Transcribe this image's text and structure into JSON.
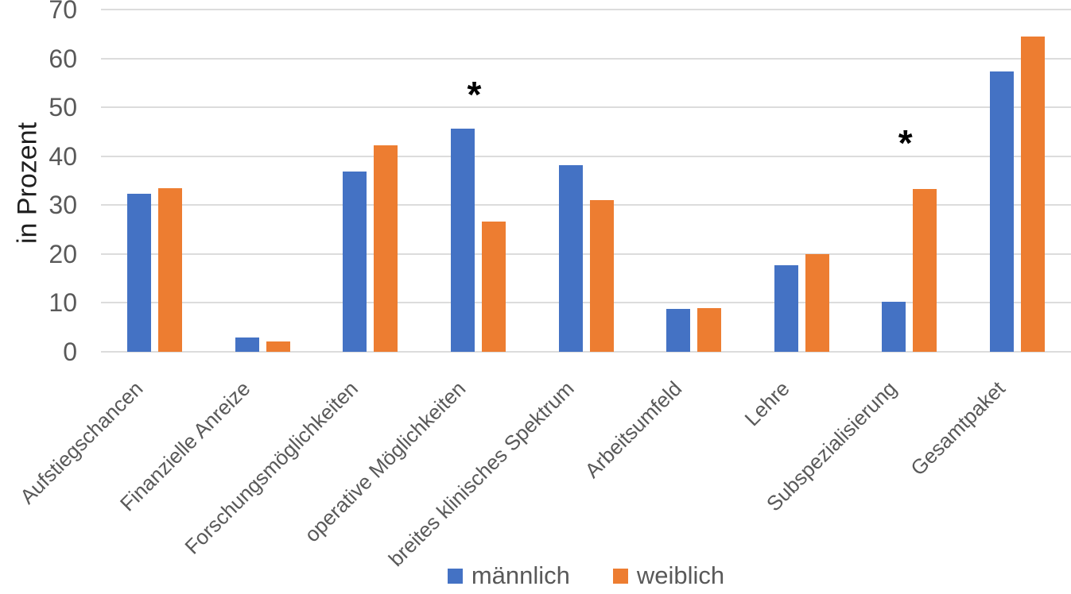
{
  "chart_data": {
    "type": "bar",
    "title": "",
    "xlabel": "",
    "ylabel": "in Prozent",
    "ylim": [
      0,
      70
    ],
    "yticks": [
      0,
      10,
      20,
      30,
      40,
      50,
      60,
      70
    ],
    "grid": true,
    "legend_position": "bottom",
    "categories": [
      "Aufstiegschancen",
      "Finanzielle Anreize",
      "Forschungsmöglichkeiten",
      "operative Möglichkeiten",
      "breites klinisches Spektrum",
      "Arbeitsumfeld",
      "Lehre",
      "Subspezialisierung",
      "Gesamtpaket"
    ],
    "series": [
      {
        "name": "männlich",
        "color": "#4472C4",
        "values": [
          32.3,
          2.9,
          36.8,
          45.6,
          38.2,
          8.8,
          17.7,
          10.3,
          57.4
        ]
      },
      {
        "name": "weiblich",
        "color": "#ED7D31",
        "values": [
          33.4,
          2.1,
          42.2,
          26.7,
          31.0,
          8.9,
          20.0,
          33.3,
          64.4
        ]
      }
    ],
    "annotations": [
      {
        "symbol": "*",
        "category": "operative Möglichkeiten",
        "category_index": 3,
        "y_value": 54
      },
      {
        "symbol": "*",
        "category": "Subspezialisierung",
        "category_index": 7,
        "y_value": 44
      }
    ]
  }
}
